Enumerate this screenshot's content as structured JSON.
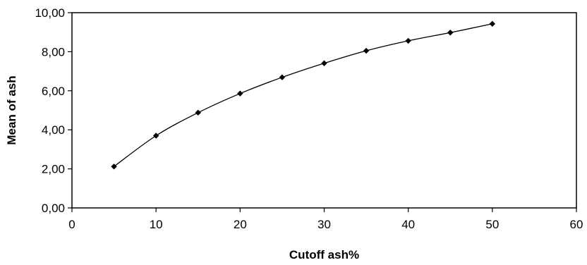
{
  "chart_data": {
    "type": "line",
    "title": "",
    "xlabel": "Cutoff ash%",
    "ylabel": "Mean of ash",
    "xlim": [
      0,
      60
    ],
    "ylim": [
      0,
      10
    ],
    "x_ticks": [
      0,
      10,
      20,
      30,
      40,
      50,
      60
    ],
    "x_tick_labels": [
      "0",
      "10",
      "20",
      "30",
      "40",
      "50",
      "60"
    ],
    "y_ticks": [
      0,
      2,
      4,
      6,
      8,
      10
    ],
    "y_tick_labels": [
      "0,00",
      "2,00",
      "4,00",
      "6,00",
      "8,00",
      "10,00"
    ],
    "grid": false,
    "legend": "none",
    "series": [
      {
        "x": [
          5,
          10,
          15,
          20,
          25,
          30,
          35,
          40,
          45,
          50
        ],
        "y": [
          2.12,
          3.7,
          4.88,
          5.86,
          6.69,
          7.41,
          8.05,
          8.56,
          8.98,
          9.43
        ],
        "color": "#000000",
        "marker": "diamond",
        "smooth": true
      }
    ]
  }
}
